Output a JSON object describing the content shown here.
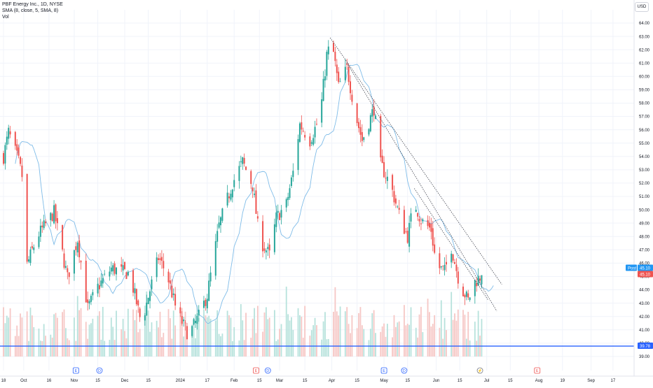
{
  "legend": {
    "symbol_line": "PBF Energy Inc., 1D, NYSE",
    "ma_line": "SMA (8, close, 5, SMA, 8)",
    "vol_line": "Vol"
  },
  "currency": "USD",
  "colors": {
    "up": "#26a69a",
    "down": "#ef5350",
    "vol_up": "#b7e2dc",
    "vol_down": "#f6c7c5",
    "ma": "#7fbce8",
    "trend": "#434651",
    "hline": "#2962ff",
    "grid": "#f0f3fa"
  },
  "events": [
    {
      "label": "E",
      "date": "Oct 31"
    },
    {
      "label": "D",
      "date": "Nov 14"
    },
    {
      "label": "E",
      "date": "Feb 15"
    },
    {
      "label": "D",
      "date": "Feb 22"
    },
    {
      "label": "E",
      "date": "May 02"
    },
    {
      "label": "D",
      "date": "May 14"
    },
    {
      "label": "⚡",
      "date": "Jun 28"
    },
    {
      "label": "E",
      "date": "Aug 01"
    }
  ],
  "price_labels": {
    "post_tag": "Post",
    "post_value": "45.10",
    "last_value": "45.10",
    "hline_value": "39.78"
  },
  "chart_data": {
    "type": "candlestick",
    "title": "PBF Energy Inc., 1D, NYSE",
    "ylim": [
      38.0,
      64.0
    ],
    "y_ticks": [
      "39.00",
      "40.00",
      "41.00",
      "42.00",
      "43.00",
      "44.00",
      "45.00",
      "46.00",
      "47.00",
      "48.00",
      "49.00",
      "50.00",
      "51.00",
      "52.00",
      "53.00",
      "54.00",
      "55.00",
      "56.00",
      "57.00",
      "58.00",
      "59.00",
      "60.00",
      "61.00",
      "62.00",
      "63.00",
      "64.00"
    ],
    "x_ticks": [
      "18",
      "Oct",
      "16",
      "Nov",
      "15",
      "Dec",
      "15",
      "2024",
      "17",
      "Feb",
      "15",
      "Mar",
      "15",
      "Apr",
      "15",
      "May",
      "15",
      "Jun",
      "15",
      "Jul",
      "15",
      "Aug",
      "19",
      "Sep",
      "17"
    ],
    "x_tick_days": [
      0,
      12,
      27,
      42,
      56,
      72,
      86,
      105,
      121,
      137,
      152,
      164,
      179,
      195,
      210,
      226,
      240,
      257,
      271,
      287,
      301,
      318,
      332,
      349,
      362
    ],
    "anchors": [
      {
        "day": 0,
        "close": 54.0
      },
      {
        "day": 3,
        "close": 55.8
      },
      {
        "day": 9,
        "close": 53.6
      },
      {
        "day": 12,
        "close": 52.0
      },
      {
        "day": 13,
        "close": 45.5
      },
      {
        "day": 20,
        "close": 48.0
      },
      {
        "day": 30,
        "close": 49.8
      },
      {
        "day": 38,
        "close": 44.9
      },
      {
        "day": 44,
        "close": 47.8
      },
      {
        "day": 50,
        "close": 42.6
      },
      {
        "day": 56,
        "close": 44.2
      },
      {
        "day": 64,
        "close": 45.6
      },
      {
        "day": 75,
        "close": 45.2
      },
      {
        "day": 82,
        "close": 41.4
      },
      {
        "day": 86,
        "close": 43.5
      },
      {
        "day": 92,
        "close": 46.4
      },
      {
        "day": 97,
        "close": 45.2
      },
      {
        "day": 103,
        "close": 42.3
      },
      {
        "day": 110,
        "close": 40.6
      },
      {
        "day": 116,
        "close": 42.0
      },
      {
        "day": 121,
        "close": 43.6
      },
      {
        "day": 128,
        "close": 48.8
      },
      {
        "day": 136,
        "close": 52.0
      },
      {
        "day": 142,
        "close": 53.6
      },
      {
        "day": 148,
        "close": 51.8
      },
      {
        "day": 152,
        "close": 47.8
      },
      {
        "day": 158,
        "close": 46.6
      },
      {
        "day": 162,
        "close": 49.4
      },
      {
        "day": 168,
        "close": 50.4
      },
      {
        "day": 172,
        "close": 52.8
      },
      {
        "day": 176,
        "close": 56.4
      },
      {
        "day": 182,
        "close": 55.2
      },
      {
        "day": 188,
        "close": 57.0
      },
      {
        "day": 192,
        "close": 61.6
      },
      {
        "day": 195,
        "close": 62.6
      },
      {
        "day": 199,
        "close": 59.2
      },
      {
        "day": 204,
        "close": 60.6
      },
      {
        "day": 209,
        "close": 57.2
      },
      {
        "day": 213,
        "close": 55.2
      },
      {
        "day": 220,
        "close": 57.6
      },
      {
        "day": 224,
        "close": 53.4
      },
      {
        "day": 230,
        "close": 51.8
      },
      {
        "day": 236,
        "close": 49.2
      },
      {
        "day": 240,
        "close": 48.0
      },
      {
        "day": 244,
        "close": 50.6
      },
      {
        "day": 248,
        "close": 49.2
      },
      {
        "day": 254,
        "close": 48.5
      },
      {
        "day": 257,
        "close": 45.8
      },
      {
        "day": 262,
        "close": 45.4
      },
      {
        "day": 266,
        "close": 47.2
      },
      {
        "day": 271,
        "close": 44.4
      },
      {
        "day": 276,
        "close": 43.2
      },
      {
        "day": 280,
        "close": 44.6
      },
      {
        "day": 284,
        "close": 45.1
      }
    ],
    "trendlines": [
      {
        "from": [
          194,
          62.9
        ],
        "to": [
          296,
          44.4
        ]
      },
      {
        "from": [
          204,
          61.0
        ],
        "to": [
          293,
          42.4
        ]
      },
      {
        "from": [
          244,
          51.6
        ],
        "to": [
          288,
          43.2
        ]
      }
    ],
    "hline": 39.78,
    "last_close": 45.1
  }
}
